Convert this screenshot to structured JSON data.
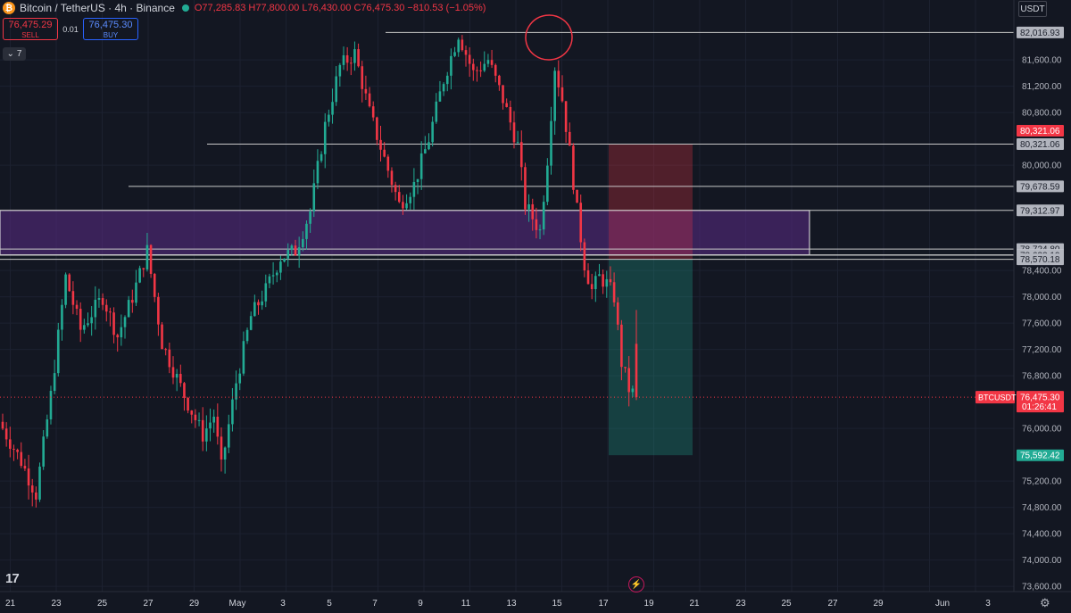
{
  "header": {
    "coin_glyph": "₿",
    "symbol": "Bitcoin / TetherUS · 4h · Binance",
    "ohlc": "O77,285.83 H77,800.00 L76,430.00 C76,475.30 −810.53 (−1.05%)"
  },
  "trade": {
    "sell_price": "76,475.29",
    "sell_label": "SELL",
    "spread": "0.01",
    "buy_price": "76,475.30",
    "buy_label": "BUY"
  },
  "indicators_toggle": {
    "chevron": "⌄",
    "count": "7"
  },
  "currency": "USDT",
  "countdown": "01:26:41",
  "symbol_tag": "BTCUSDT",
  "price_axis": {
    "ticks": [
      "81,600.00",
      "81,200.00",
      "80,800.00",
      "80,000.00",
      "78,400.00",
      "78,000.00",
      "77,600.00",
      "77,200.00",
      "76,800.00",
      "76,000.00",
      "75,200.00",
      "74,800.00",
      "74,400.00",
      "74,000.00",
      "73,600.00"
    ],
    "line_labels": [
      "82,016.93",
      "80,321.06",
      "79,678.59",
      "79,312.97",
      "78,724.80",
      "78,637.91",
      "78,632.10",
      "78,570.18"
    ],
    "current_price": "76,475.30",
    "stop_price": "80,321.06",
    "target_price": "75,592.42"
  },
  "time_axis": [
    "21",
    "23",
    "25",
    "27",
    "29",
    "May",
    "3",
    "5",
    "7",
    "9",
    "11",
    "13",
    "15",
    "17",
    "19",
    "21",
    "23",
    "25",
    "27",
    "29",
    "Jun",
    "3"
  ],
  "icons": {
    "logo": "17",
    "flash": "⚡",
    "settings": "⚙"
  },
  "chart_data": {
    "type": "candlestick",
    "instrument": "BTCUSDT",
    "timeframe": "4h",
    "candles_visible": 172,
    "last": {
      "open": 77285.83,
      "high": 77800.0,
      "low": 76430.0,
      "close": 76475.3
    },
    "horizontal_levels": [
      82016.93,
      80321.06,
      79678.59,
      79312.97,
      78724.8,
      78637.91,
      78632.1,
      78570.18
    ],
    "zone": {
      "from": 78637.91,
      "to": 79312.97
    },
    "position": {
      "entry": 78570.18,
      "stop": 80321.06,
      "target": 75592.42
    },
    "colors": {
      "up": "#22ab94",
      "down": "#f23645",
      "zone": "#5b2c86",
      "stop_box": "#f23645",
      "target_box": "#22ab94"
    }
  }
}
